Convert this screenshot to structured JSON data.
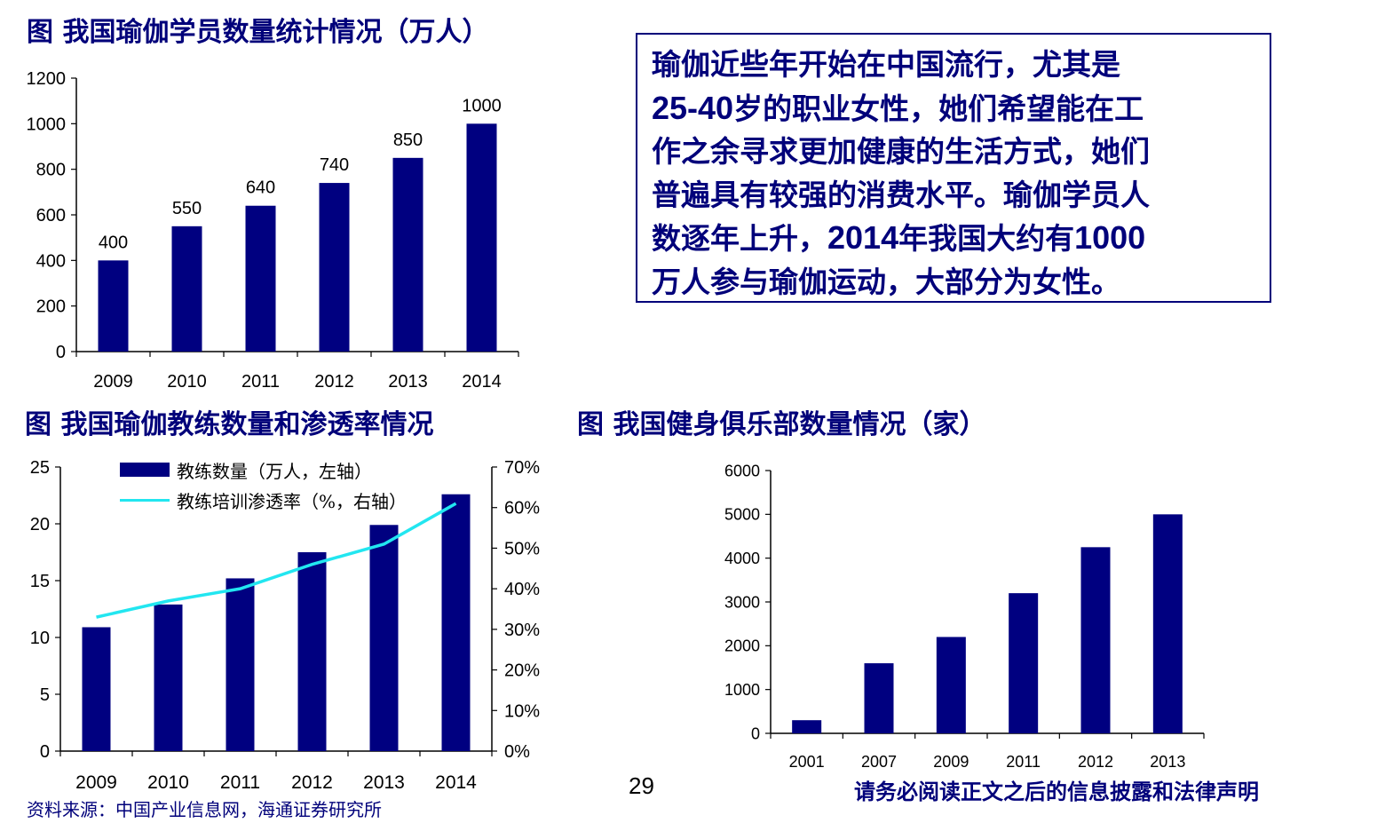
{
  "colors": {
    "bar": "#000080",
    "line": "#22e6f0",
    "title": "#00007a"
  },
  "titles": {
    "chart1": "图 我国瑜伽学员数量统计情况（万人）",
    "chart2": "图 我国瑜伽教练数量和渗透率情况",
    "chart3": "图 我国健身俱乐部数量情况（家）"
  },
  "callout": {
    "lines": [
      [
        "瑜伽近些年开始在中国流行，尤其是"
      ],
      [
        "25-40",
        "岁的职业女性，她们希望能在工"
      ],
      [
        "作之余寻求更加健康的生活方式，她们"
      ],
      [
        "普遍具有较强的消费水平。瑜伽学员人"
      ],
      [
        "数逐年上升，",
        "2014",
        "年我国大约有",
        "1000"
      ],
      [
        "万人参与瑜伽运动，大部分为女性。"
      ]
    ]
  },
  "legend": {
    "bar_label": "教练数量（万人，左轴）",
    "line_label": "教练培训渗透率（%，右轴）"
  },
  "footer": {
    "source": "资料来源：中国产业信息网，海通证券研究所",
    "page": "29",
    "notice": "请务必阅读正文之后的信息披露和法律声明"
  },
  "chart_data": [
    {
      "type": "bar",
      "title": "图 我国瑜伽学员数量统计情况（万人）",
      "categories": [
        "2009",
        "2010",
        "2011",
        "2012",
        "2013",
        "2014"
      ],
      "values": [
        400,
        550,
        640,
        740,
        850,
        1000
      ],
      "data_labels": [
        "400",
        "550",
        "640",
        "740",
        "850",
        "1000"
      ],
      "ylim": [
        0,
        1200
      ],
      "yticks": [
        "0",
        "200",
        "400",
        "600",
        "800",
        "1000",
        "1200"
      ]
    },
    {
      "type": "bar",
      "title": "图 我国瑜伽教练数量和渗透率情况",
      "categories": [
        "2009",
        "2010",
        "2011",
        "2012",
        "2013",
        "2014"
      ],
      "series": [
        {
          "name": "教练数量（万人，左轴）",
          "type": "bar",
          "axis": "left",
          "values": [
            10.9,
            12.9,
            15.2,
            17.5,
            19.9,
            22.6
          ]
        },
        {
          "name": "教练培训渗透率（%，右轴）",
          "type": "line",
          "axis": "right",
          "values": [
            33,
            37,
            40,
            46,
            51,
            61
          ]
        }
      ],
      "ylim": [
        0,
        25
      ],
      "yticks": [
        "0",
        "5",
        "10",
        "15",
        "20",
        "25"
      ],
      "y2lim": [
        0,
        70
      ],
      "y2ticks": [
        "0%",
        "10%",
        "20%",
        "30%",
        "40%",
        "50%",
        "60%",
        "70%"
      ],
      "legend": "top-left"
    },
    {
      "type": "bar",
      "title": "图 我国健身俱乐部数量情况（家）",
      "categories": [
        "2001",
        "2007",
        "2009",
        "2011",
        "2012",
        "2013"
      ],
      "values": [
        300,
        1600,
        2200,
        3200,
        4250,
        5000
      ],
      "ylim": [
        0,
        6000
      ],
      "yticks": [
        "0",
        "1000",
        "2000",
        "3000",
        "4000",
        "5000",
        "6000"
      ]
    }
  ]
}
